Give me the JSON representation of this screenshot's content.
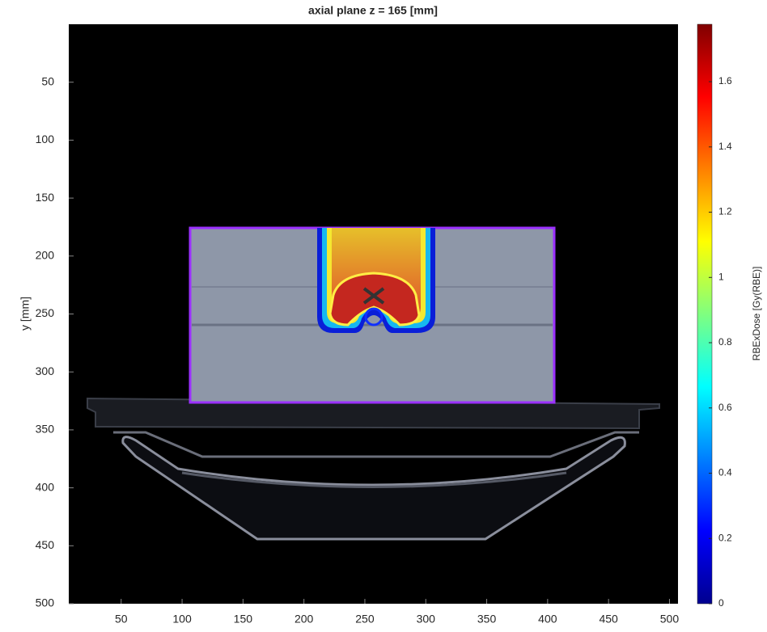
{
  "chart_data": {
    "type": "heatmap",
    "title": "axial plane z = 165 [mm]",
    "ylabel": "y [mm]",
    "colorbar_label": "RBExDose [Gy(RBE)]",
    "colormap": "jet",
    "xlim": [
      7,
      507
    ],
    "ylim": [
      0,
      500
    ],
    "y_reversed": true,
    "xticks": [
      50,
      100,
      150,
      200,
      250,
      300,
      350,
      400,
      450,
      500
    ],
    "yticks": [
      50,
      100,
      150,
      200,
      250,
      300,
      350,
      400,
      450,
      500
    ],
    "clim": [
      0,
      1.776
    ],
    "cticks": [
      0,
      0.2,
      0.4,
      0.6,
      0.8,
      1,
      1.2,
      1.4,
      1.6
    ]
  }
}
